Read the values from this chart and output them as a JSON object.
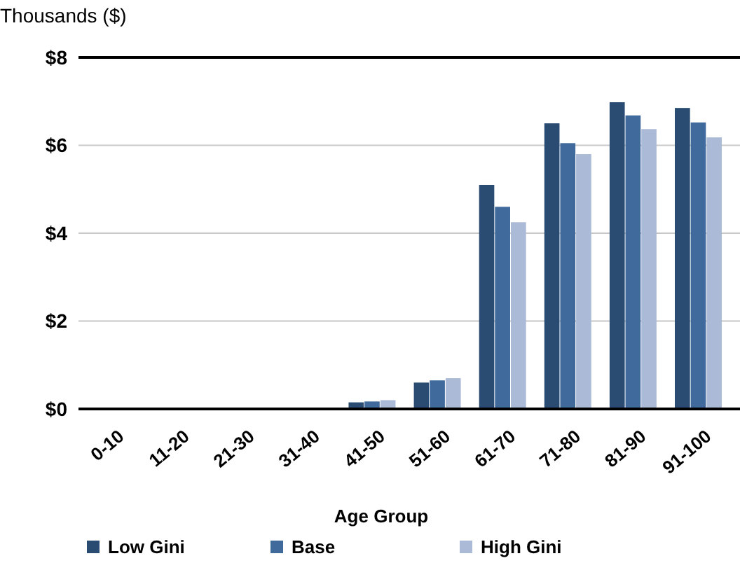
{
  "chart_data": {
    "type": "bar",
    "ylabel": "Thousands ($)",
    "xlabel": "Age Group",
    "categories": [
      "0-10",
      "11-20",
      "21-30",
      "31-40",
      "41-50",
      "51-60",
      "61-70",
      "71-80",
      "81-90",
      "91-100"
    ],
    "series": [
      {
        "name": "Low Gini",
        "color": "#2b4c72",
        "values": [
          0,
          0,
          0,
          0,
          0.15,
          0.6,
          5.1,
          6.5,
          6.98,
          6.85
        ]
      },
      {
        "name": "Base",
        "color": "#416a9c",
        "values": [
          0,
          0,
          0,
          0,
          0.17,
          0.65,
          4.6,
          6.05,
          6.68,
          6.52
        ]
      },
      {
        "name": "High Gini",
        "color": "#abbad6",
        "values": [
          0,
          0,
          0,
          0,
          0.2,
          0.7,
          4.25,
          5.8,
          6.37,
          6.18
        ]
      }
    ],
    "ylim": [
      0,
      8
    ],
    "yticks": [
      {
        "value": 0,
        "label": "$0"
      },
      {
        "value": 2,
        "label": "$2"
      },
      {
        "value": 4,
        "label": "$4"
      },
      {
        "value": 6,
        "label": "$6"
      },
      {
        "value": 8,
        "label": "$8"
      }
    ],
    "grid": "y",
    "legend": "bottom"
  }
}
